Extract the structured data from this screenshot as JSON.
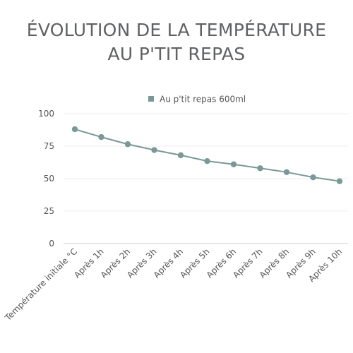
{
  "title_lines": [
    "ÉVOLUTION DE LA TEMPÉRATURE",
    "AU P'TIT REPAS"
  ],
  "chart_data": {
    "type": "line",
    "title": "ÉVOLUTION DE LA TEMPÉRATURE AU P'TIT REPAS",
    "categories": [
      "Température initiale °C",
      "Après 1h",
      "Après 2h",
      "Après 3h",
      "Après 4h",
      "Après 5h",
      "Après 6h",
      "Après 7h",
      "Après 8h",
      "Après 9h",
      "Après 10h"
    ],
    "series": [
      {
        "name": "Au p'tit repas 600ml",
        "values": [
          88,
          82,
          76.5,
          72,
          68,
          63.5,
          61,
          58,
          55,
          51,
          48
        ],
        "color": "#7b9898"
      }
    ],
    "ylim": [
      0,
      100
    ],
    "yticks": [
      0,
      25,
      50,
      75,
      100
    ],
    "grid": true,
    "legend_position": "top"
  }
}
